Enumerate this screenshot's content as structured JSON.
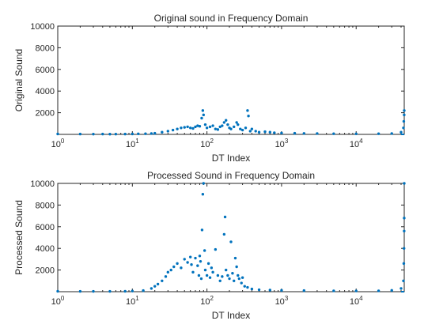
{
  "chart_data": [
    {
      "type": "scatter",
      "title": "Original sound in Frequency Domain",
      "xlabel": "DT Index",
      "ylabel": "Original Sound",
      "x_scale": "log",
      "xlim": [
        1,
        44100
      ],
      "ylim": [
        0,
        10000
      ],
      "xticks": [
        1,
        10,
        100,
        1000,
        10000
      ],
      "xtick_labels": [
        {
          "base": "10",
          "exp": "0"
        },
        {
          "base": "10",
          "exp": "1"
        },
        {
          "base": "10",
          "exp": "2"
        },
        {
          "base": "10",
          "exp": "3"
        },
        {
          "base": "10",
          "exp": "4"
        }
      ],
      "yticks": [
        0,
        2000,
        4000,
        6000,
        8000,
        10000
      ],
      "ytick_labels": [
        "",
        "2000",
        "4000",
        "6000",
        "8000",
        "10000"
      ],
      "grid": false,
      "marker_color": "#0072BD",
      "points": [
        [
          1,
          40
        ],
        [
          2,
          30
        ],
        [
          3,
          25
        ],
        [
          4,
          30
        ],
        [
          5,
          20
        ],
        [
          6,
          25
        ],
        [
          8,
          30
        ],
        [
          10,
          40
        ],
        [
          12,
          50
        ],
        [
          15,
          60
        ],
        [
          18,
          80
        ],
        [
          20,
          100
        ],
        [
          25,
          200
        ],
        [
          30,
          300
        ],
        [
          35,
          400
        ],
        [
          40,
          500
        ],
        [
          45,
          600
        ],
        [
          50,
          650
        ],
        [
          55,
          700
        ],
        [
          60,
          600
        ],
        [
          65,
          550
        ],
        [
          70,
          700
        ],
        [
          75,
          800
        ],
        [
          80,
          750
        ],
        [
          85,
          1500
        ],
        [
          88,
          2200
        ],
        [
          90,
          1800
        ],
        [
          95,
          900
        ],
        [
          100,
          600
        ],
        [
          110,
          700
        ],
        [
          120,
          800
        ],
        [
          130,
          500
        ],
        [
          140,
          450
        ],
        [
          150,
          700
        ],
        [
          160,
          800
        ],
        [
          170,
          1100
        ],
        [
          180,
          1300
        ],
        [
          190,
          900
        ],
        [
          200,
          600
        ],
        [
          210,
          500
        ],
        [
          230,
          700
        ],
        [
          250,
          1100
        ],
        [
          260,
          900
        ],
        [
          280,
          500
        ],
        [
          300,
          400
        ],
        [
          330,
          600
        ],
        [
          350,
          2200
        ],
        [
          360,
          1700
        ],
        [
          380,
          300
        ],
        [
          400,
          500
        ],
        [
          450,
          300
        ],
        [
          500,
          200
        ],
        [
          600,
          250
        ],
        [
          700,
          200
        ],
        [
          800,
          150
        ],
        [
          1000,
          120
        ],
        [
          1500,
          100
        ],
        [
          2000,
          90
        ],
        [
          3000,
          80
        ],
        [
          5000,
          60
        ],
        [
          10000,
          50
        ],
        [
          20000,
          60
        ],
        [
          30000,
          80
        ],
        [
          40000,
          200
        ],
        [
          43000,
          600
        ],
        [
          43500,
          1200
        ],
        [
          44000,
          1800
        ],
        [
          44100,
          2200
        ]
      ]
    },
    {
      "type": "scatter",
      "title": "Processed Sound in Frequency Domain",
      "xlabel": "DT Index",
      "ylabel": "Processed Sound",
      "x_scale": "log",
      "xlim": [
        1,
        44100
      ],
      "ylim": [
        0,
        10000
      ],
      "xticks": [
        1,
        10,
        100,
        1000,
        10000
      ],
      "xtick_labels": [
        {
          "base": "10",
          "exp": "0"
        },
        {
          "base": "10",
          "exp": "1"
        },
        {
          "base": "10",
          "exp": "2"
        },
        {
          "base": "10",
          "exp": "3"
        },
        {
          "base": "10",
          "exp": "4"
        }
      ],
      "yticks": [
        0,
        2000,
        4000,
        6000,
        8000,
        10000
      ],
      "ytick_labels": [
        "",
        "2000",
        "4000",
        "6000",
        "8000",
        "10000"
      ],
      "grid": false,
      "marker_color": "#0072BD",
      "points": [
        [
          1,
          40
        ],
        [
          2,
          30
        ],
        [
          3,
          30
        ],
        [
          5,
          30
        ],
        [
          8,
          40
        ],
        [
          10,
          60
        ],
        [
          14,
          100
        ],
        [
          18,
          300
        ],
        [
          20,
          500
        ],
        [
          22,
          700
        ],
        [
          25,
          1000
        ],
        [
          28,
          1400
        ],
        [
          30,
          1800
        ],
        [
          33,
          2000
        ],
        [
          36,
          2300
        ],
        [
          40,
          2600
        ],
        [
          45,
          2200
        ],
        [
          50,
          3000
        ],
        [
          55,
          2700
        ],
        [
          60,
          3200
        ],
        [
          62,
          2500
        ],
        [
          65,
          1800
        ],
        [
          70,
          3100
        ],
        [
          75,
          2400
        ],
        [
          78,
          1500
        ],
        [
          80,
          3300
        ],
        [
          82,
          2800
        ],
        [
          84,
          1200
        ],
        [
          86,
          5700
        ],
        [
          88,
          9000
        ],
        [
          90,
          10000
        ],
        [
          93,
          3800
        ],
        [
          95,
          2000
        ],
        [
          100,
          1500
        ],
        [
          105,
          2600
        ],
        [
          110,
          1300
        ],
        [
          115,
          2200
        ],
        [
          120,
          1800
        ],
        [
          130,
          3900
        ],
        [
          140,
          1500
        ],
        [
          150,
          1000
        ],
        [
          160,
          1400
        ],
        [
          170,
          5300
        ],
        [
          175,
          6900
        ],
        [
          180,
          2000
        ],
        [
          190,
          1500
        ],
        [
          200,
          1200
        ],
        [
          210,
          4600
        ],
        [
          220,
          1700
        ],
        [
          230,
          1000
        ],
        [
          240,
          3100
        ],
        [
          250,
          2300
        ],
        [
          260,
          1500
        ],
        [
          270,
          1200
        ],
        [
          290,
          800
        ],
        [
          300,
          1300
        ],
        [
          320,
          500
        ],
        [
          350,
          400
        ],
        [
          400,
          250
        ],
        [
          500,
          180
        ],
        [
          700,
          150
        ],
        [
          1000,
          120
        ],
        [
          2000,
          100
        ],
        [
          5000,
          80
        ],
        [
          10000,
          70
        ],
        [
          20000,
          80
        ],
        [
          30000,
          120
        ],
        [
          40000,
          300
        ],
        [
          43000,
          1000
        ],
        [
          43500,
          2600
        ],
        [
          43800,
          4000
        ],
        [
          44000,
          5600
        ],
        [
          44050,
          6800
        ],
        [
          44100,
          10000
        ]
      ]
    }
  ]
}
